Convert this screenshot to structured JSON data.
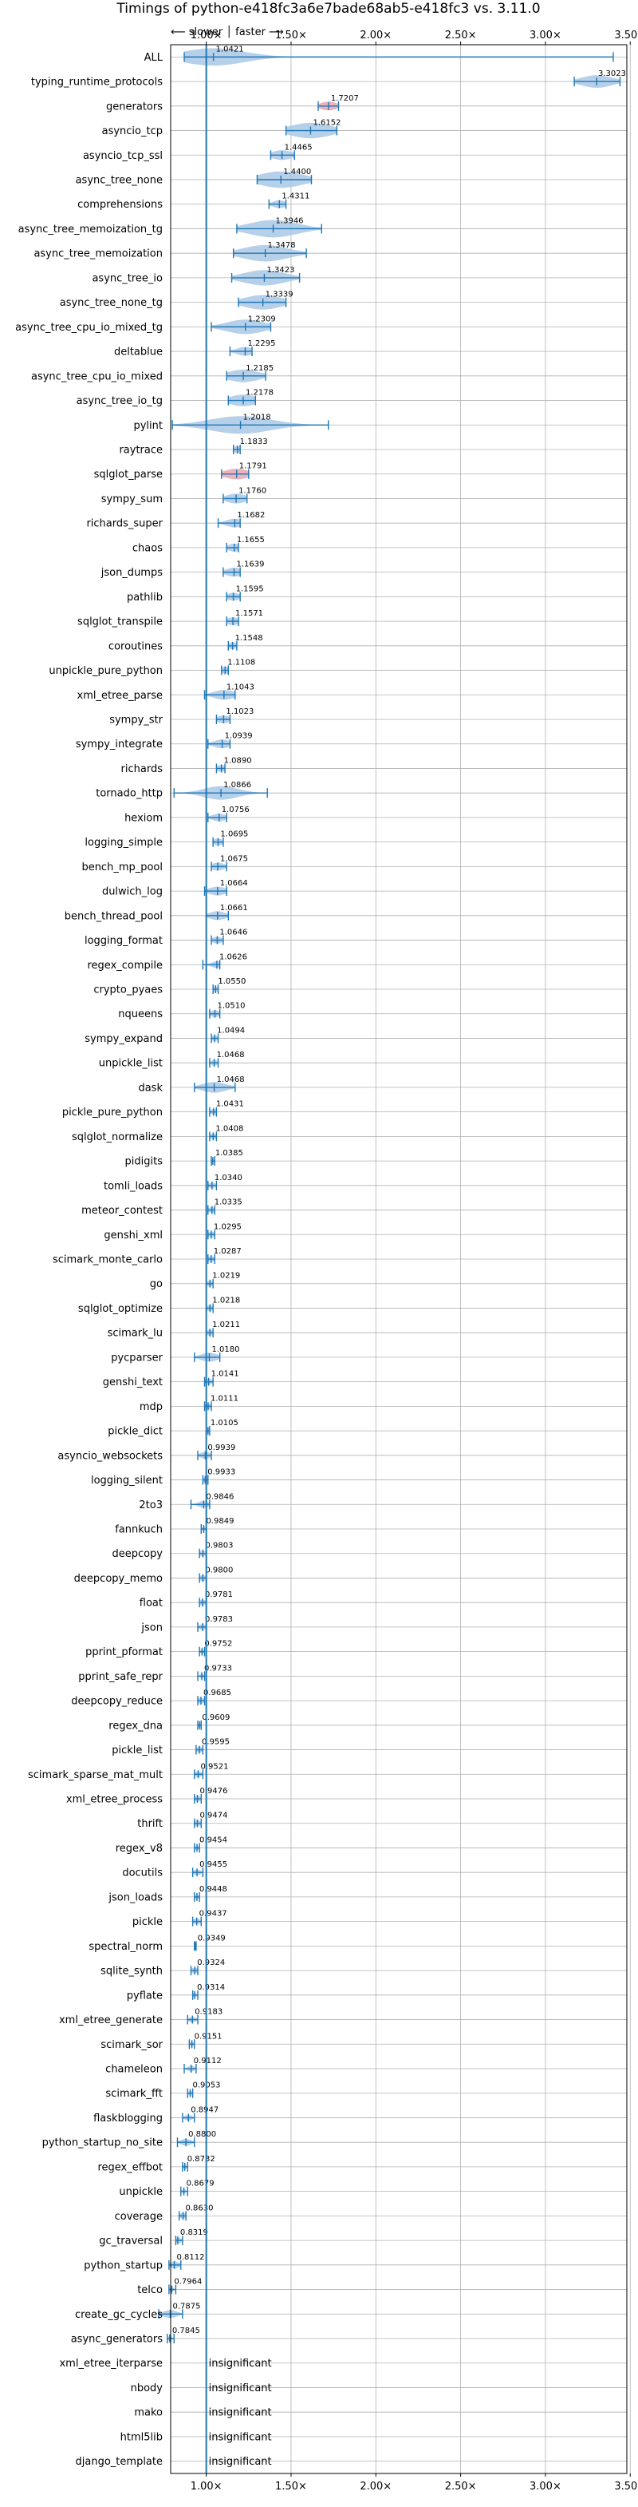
{
  "chart_data": {
    "type": "violin",
    "title": "Timings of python-e418fc3a6e7bade68ab5-e418fc3 vs. 3.11.0",
    "direction_legend": "⟵ slower │ faster ⟶",
    "xlim": [
      0.79,
      3.48
    ],
    "grid": true,
    "baseline": 1.0,
    "x_ticks": [
      {
        "value": 1.0,
        "label": "1.00×"
      },
      {
        "value": 1.5,
        "label": "1.50×"
      },
      {
        "value": 2.0,
        "label": "2.00×"
      },
      {
        "value": 2.5,
        "label": "2.50×"
      },
      {
        "value": 3.0,
        "label": "3.00×"
      },
      {
        "value": 3.5,
        "label": "3.50×"
      }
    ],
    "colors": {
      "violin": "#a9c8e6",
      "line": "#1f77b4",
      "baseline": "#1f77b4",
      "highlight": "#e7a3b0",
      "grid": "#b0b0b0"
    },
    "insignificant_text": "insignificant",
    "benchmarks": [
      {
        "name": "ALL",
        "value": 1.0421,
        "label": "1.0421",
        "min": 0.87,
        "max": 3.4,
        "spread": 0.18
      },
      {
        "name": "typing_runtime_protocols",
        "value": 3.3023,
        "label": "3.3023",
        "min": 3.17,
        "max": 3.44,
        "spread": 0.09
      },
      {
        "name": "generators",
        "value": 1.7207,
        "label": "1.7207",
        "min": 1.66,
        "max": 1.78,
        "spread": 0.05,
        "highlight": true
      },
      {
        "name": "asyncio_tcp",
        "value": 1.6152,
        "label": "1.6152",
        "min": 1.47,
        "max": 1.77,
        "spread": 0.12
      },
      {
        "name": "asyncio_tcp_ssl",
        "value": 1.4465,
        "label": "1.4465",
        "min": 1.38,
        "max": 1.52,
        "spread": 0.06
      },
      {
        "name": "async_tree_none",
        "value": 1.44,
        "label": "1.4400",
        "min": 1.3,
        "max": 1.62,
        "spread": 0.13
      },
      {
        "name": "comprehensions",
        "value": 1.4311,
        "label": "1.4311",
        "min": 1.37,
        "max": 1.47,
        "spread": 0.04
      },
      {
        "name": "async_tree_memoization_tg",
        "value": 1.3946,
        "label": "1.3946",
        "min": 1.18,
        "max": 1.68,
        "spread": 0.14
      },
      {
        "name": "async_tree_memoization",
        "value": 1.3478,
        "label": "1.3478",
        "min": 1.16,
        "max": 1.59,
        "spread": 0.13
      },
      {
        "name": "async_tree_io",
        "value": 1.3423,
        "label": "1.3423",
        "min": 1.15,
        "max": 1.55,
        "spread": 0.12
      },
      {
        "name": "async_tree_none_tg",
        "value": 1.3339,
        "label": "1.3339",
        "min": 1.19,
        "max": 1.47,
        "spread": 0.11
      },
      {
        "name": "async_tree_cpu_io_mixed_tg",
        "value": 1.2309,
        "label": "1.2309",
        "min": 1.03,
        "max": 1.38,
        "spread": 0.11
      },
      {
        "name": "deltablue",
        "value": 1.2295,
        "label": "1.2295",
        "min": 1.14,
        "max": 1.27,
        "spread": 0.05
      },
      {
        "name": "async_tree_cpu_io_mixed",
        "value": 1.2185,
        "label": "1.2185",
        "min": 1.12,
        "max": 1.35,
        "spread": 0.09
      },
      {
        "name": "async_tree_io_tg",
        "value": 1.2178,
        "label": "1.2178",
        "min": 1.13,
        "max": 1.29,
        "spread": 0.08
      },
      {
        "name": "pylint",
        "value": 1.2018,
        "label": "1.2018",
        "min": 0.8,
        "max": 1.72,
        "spread": 0.18
      },
      {
        "name": "raytrace",
        "value": 1.1833,
        "label": "1.1833",
        "min": 1.16,
        "max": 1.2,
        "spread": 0.03
      },
      {
        "name": "sqlglot_parse",
        "value": 1.1791,
        "label": "1.1791",
        "min": 1.09,
        "max": 1.25,
        "spread": 0.07,
        "highlight": true
      },
      {
        "name": "sympy_sum",
        "value": 1.176,
        "label": "1.1760",
        "min": 1.1,
        "max": 1.24,
        "spread": 0.06
      },
      {
        "name": "richards_super",
        "value": 1.1682,
        "label": "1.1682",
        "min": 1.07,
        "max": 1.2,
        "spread": 0.05
      },
      {
        "name": "chaos",
        "value": 1.1655,
        "label": "1.1655",
        "min": 1.12,
        "max": 1.19,
        "spread": 0.04
      },
      {
        "name": "json_dumps",
        "value": 1.1639,
        "label": "1.1639",
        "min": 1.1,
        "max": 1.2,
        "spread": 0.05
      },
      {
        "name": "pathlib",
        "value": 1.1595,
        "label": "1.1595",
        "min": 1.12,
        "max": 1.2,
        "spread": 0.04
      },
      {
        "name": "sqlglot_transpile",
        "value": 1.1571,
        "label": "1.1571",
        "min": 1.12,
        "max": 1.19,
        "spread": 0.04
      },
      {
        "name": "coroutines",
        "value": 1.1548,
        "label": "1.1548",
        "min": 1.13,
        "max": 1.18,
        "spread": 0.03
      },
      {
        "name": "unpickle_pure_python",
        "value": 1.1108,
        "label": "1.1108",
        "min": 1.09,
        "max": 1.13,
        "spread": 0.03
      },
      {
        "name": "xml_etree_parse",
        "value": 1.1043,
        "label": "1.1043",
        "min": 0.99,
        "max": 1.17,
        "spread": 0.06
      },
      {
        "name": "sympy_str",
        "value": 1.1023,
        "label": "1.1023",
        "min": 1.06,
        "max": 1.14,
        "spread": 0.04
      },
      {
        "name": "sympy_integrate",
        "value": 1.0939,
        "label": "1.0939",
        "min": 1.01,
        "max": 1.14,
        "spread": 0.05
      },
      {
        "name": "richards",
        "value": 1.089,
        "label": "1.0890",
        "min": 1.06,
        "max": 1.11,
        "spread": 0.03
      },
      {
        "name": "tornado_http",
        "value": 1.0866,
        "label": "1.0866",
        "min": 0.81,
        "max": 1.36,
        "spread": 0.1
      },
      {
        "name": "hexiom",
        "value": 1.0756,
        "label": "1.0756",
        "min": 1.01,
        "max": 1.12,
        "spread": 0.04
      },
      {
        "name": "logging_simple",
        "value": 1.0695,
        "label": "1.0695",
        "min": 1.04,
        "max": 1.1,
        "spread": 0.03
      },
      {
        "name": "bench_mp_pool",
        "value": 1.0675,
        "label": "1.0675",
        "min": 1.03,
        "max": 1.12,
        "spread": 0.04
      },
      {
        "name": "dulwich_log",
        "value": 1.0664,
        "label": "1.0664",
        "min": 0.99,
        "max": 1.12,
        "spread": 0.05
      },
      {
        "name": "bench_thread_pool",
        "value": 1.0661,
        "label": "1.0661",
        "min": 1.0,
        "max": 1.13,
        "spread": 0.05
      },
      {
        "name": "logging_format",
        "value": 1.0646,
        "label": "1.0646",
        "min": 1.03,
        "max": 1.1,
        "spread": 0.03
      },
      {
        "name": "regex_compile",
        "value": 1.0626,
        "label": "1.0626",
        "min": 0.98,
        "max": 1.08,
        "spread": 0.03
      },
      {
        "name": "crypto_pyaes",
        "value": 1.055,
        "label": "1.0550",
        "min": 1.04,
        "max": 1.07,
        "spread": 0.02
      },
      {
        "name": "nqueens",
        "value": 1.051,
        "label": "1.0510",
        "min": 1.02,
        "max": 1.08,
        "spread": 0.03
      },
      {
        "name": "sympy_expand",
        "value": 1.0494,
        "label": "1.0494",
        "min": 1.03,
        "max": 1.07,
        "spread": 0.02
      },
      {
        "name": "unpickle_list",
        "value": 1.0468,
        "label": "1.0468",
        "min": 1.02,
        "max": 1.07,
        "spread": 0.02
      },
      {
        "name": "dask",
        "value": 1.0468,
        "label": "1.0468",
        "min": 0.93,
        "max": 1.17,
        "spread": 0.07
      },
      {
        "name": "pickle_pure_python",
        "value": 1.0431,
        "label": "1.0431",
        "min": 1.02,
        "max": 1.06,
        "spread": 0.02
      },
      {
        "name": "sqlglot_normalize",
        "value": 1.0408,
        "label": "1.0408",
        "min": 1.02,
        "max": 1.06,
        "spread": 0.02
      },
      {
        "name": "pidigits",
        "value": 1.0385,
        "label": "1.0385",
        "min": 1.03,
        "max": 1.05,
        "spread": 0.01
      },
      {
        "name": "tomli_loads",
        "value": 1.034,
        "label": "1.0340",
        "min": 1.01,
        "max": 1.06,
        "spread": 0.02
      },
      {
        "name": "meteor_contest",
        "value": 1.0335,
        "label": "1.0335",
        "min": 1.01,
        "max": 1.05,
        "spread": 0.02
      },
      {
        "name": "genshi_xml",
        "value": 1.0295,
        "label": "1.0295",
        "min": 1.01,
        "max": 1.05,
        "spread": 0.02
      },
      {
        "name": "scimark_monte_carlo",
        "value": 1.0287,
        "label": "1.0287",
        "min": 1.01,
        "max": 1.05,
        "spread": 0.02
      },
      {
        "name": "go",
        "value": 1.0219,
        "label": "1.0219",
        "min": 1.0,
        "max": 1.04,
        "spread": 0.02
      },
      {
        "name": "sqlglot_optimize",
        "value": 1.0218,
        "label": "1.0218",
        "min": 1.0,
        "max": 1.04,
        "spread": 0.02
      },
      {
        "name": "scimark_lu",
        "value": 1.0211,
        "label": "1.0211",
        "min": 1.0,
        "max": 1.04,
        "spread": 0.02
      },
      {
        "name": "pycparser",
        "value": 1.018,
        "label": "1.0180",
        "min": 0.93,
        "max": 1.08,
        "spread": 0.05
      },
      {
        "name": "genshi_text",
        "value": 1.0141,
        "label": "1.0141",
        "min": 0.99,
        "max": 1.04,
        "spread": 0.02
      },
      {
        "name": "mdp",
        "value": 1.0111,
        "label": "1.0111",
        "min": 0.99,
        "max": 1.03,
        "spread": 0.02
      },
      {
        "name": "pickle_dict",
        "value": 1.0105,
        "label": "1.0105",
        "min": 1.0,
        "max": 1.02,
        "spread": 0.01
      },
      {
        "name": "asyncio_websockets",
        "value": 0.9939,
        "label": "0.9939",
        "min": 0.95,
        "max": 1.03,
        "spread": 0.03
      },
      {
        "name": "logging_silent",
        "value": 0.9933,
        "label": "0.9933",
        "min": 0.98,
        "max": 1.01,
        "spread": 0.01
      },
      {
        "name": "2to3",
        "value": 0.9846,
        "label": "0.9846",
        "min": 0.91,
        "max": 1.02,
        "spread": 0.03
      },
      {
        "name": "fannkuch",
        "value": 0.9849,
        "label": "0.9849",
        "min": 0.97,
        "max": 1.0,
        "spread": 0.01
      },
      {
        "name": "deepcopy",
        "value": 0.9803,
        "label": "0.9803",
        "min": 0.96,
        "max": 1.0,
        "spread": 0.02
      },
      {
        "name": "deepcopy_memo",
        "value": 0.98,
        "label": "0.9800",
        "min": 0.96,
        "max": 1.0,
        "spread": 0.02
      },
      {
        "name": "float",
        "value": 0.9781,
        "label": "0.9781",
        "min": 0.96,
        "max": 1.0,
        "spread": 0.02
      },
      {
        "name": "json",
        "value": 0.9783,
        "label": "0.9783",
        "min": 0.95,
        "max": 1.0,
        "spread": 0.02
      },
      {
        "name": "pprint_pformat",
        "value": 0.9752,
        "label": "0.9752",
        "min": 0.96,
        "max": 0.99,
        "spread": 0.01
      },
      {
        "name": "pprint_safe_repr",
        "value": 0.9733,
        "label": "0.9733",
        "min": 0.95,
        "max": 0.99,
        "spread": 0.01
      },
      {
        "name": "deepcopy_reduce",
        "value": 0.9685,
        "label": "0.9685",
        "min": 0.95,
        "max": 0.99,
        "spread": 0.02
      },
      {
        "name": "regex_dna",
        "value": 0.9609,
        "label": "0.9609",
        "min": 0.95,
        "max": 0.97,
        "spread": 0.01
      },
      {
        "name": "pickle_list",
        "value": 0.9595,
        "label": "0.9595",
        "min": 0.94,
        "max": 0.98,
        "spread": 0.02
      },
      {
        "name": "scimark_sparse_mat_mult",
        "value": 0.9521,
        "label": "0.9521",
        "min": 0.93,
        "max": 0.98,
        "spread": 0.02
      },
      {
        "name": "xml_etree_process",
        "value": 0.9476,
        "label": "0.9476",
        "min": 0.93,
        "max": 0.97,
        "spread": 0.02
      },
      {
        "name": "thrift",
        "value": 0.9474,
        "label": "0.9474",
        "min": 0.93,
        "max": 0.97,
        "spread": 0.02
      },
      {
        "name": "regex_v8",
        "value": 0.9454,
        "label": "0.9454",
        "min": 0.93,
        "max": 0.96,
        "spread": 0.01
      },
      {
        "name": "docutils",
        "value": 0.9455,
        "label": "0.9455",
        "min": 0.92,
        "max": 0.98,
        "spread": 0.02
      },
      {
        "name": "json_loads",
        "value": 0.9448,
        "label": "0.9448",
        "min": 0.93,
        "max": 0.96,
        "spread": 0.01
      },
      {
        "name": "pickle",
        "value": 0.9437,
        "label": "0.9437",
        "min": 0.92,
        "max": 0.97,
        "spread": 0.02
      },
      {
        "name": "spectral_norm",
        "value": 0.9349,
        "label": "0.9349",
        "min": 0.93,
        "max": 0.94,
        "spread": 0.01
      },
      {
        "name": "sqlite_synth",
        "value": 0.9324,
        "label": "0.9324",
        "min": 0.91,
        "max": 0.95,
        "spread": 0.02
      },
      {
        "name": "pyflate",
        "value": 0.9314,
        "label": "0.9314",
        "min": 0.92,
        "max": 0.95,
        "spread": 0.01
      },
      {
        "name": "xml_etree_generate",
        "value": 0.9183,
        "label": "0.9183",
        "min": 0.89,
        "max": 0.95,
        "spread": 0.02
      },
      {
        "name": "scimark_sor",
        "value": 0.9151,
        "label": "0.9151",
        "min": 0.9,
        "max": 0.93,
        "spread": 0.01
      },
      {
        "name": "chameleon",
        "value": 0.9112,
        "label": "0.9112",
        "min": 0.87,
        "max": 0.94,
        "spread": 0.02
      },
      {
        "name": "scimark_fft",
        "value": 0.9053,
        "label": "0.9053",
        "min": 0.89,
        "max": 0.92,
        "spread": 0.01
      },
      {
        "name": "flaskblogging",
        "value": 0.8947,
        "label": "0.8947",
        "min": 0.86,
        "max": 0.93,
        "spread": 0.02
      },
      {
        "name": "python_startup_no_site",
        "value": 0.88,
        "label": "0.8800",
        "min": 0.83,
        "max": 0.93,
        "spread": 0.03
      },
      {
        "name": "regex_effbot",
        "value": 0.8732,
        "label": "0.8732",
        "min": 0.86,
        "max": 0.89,
        "spread": 0.01
      },
      {
        "name": "unpickle",
        "value": 0.8679,
        "label": "0.8679",
        "min": 0.85,
        "max": 0.89,
        "spread": 0.01
      },
      {
        "name": "coverage",
        "value": 0.863,
        "label": "0.8630",
        "min": 0.84,
        "max": 0.88,
        "spread": 0.02
      },
      {
        "name": "gc_traversal",
        "value": 0.8319,
        "label": "0.8319",
        "min": 0.82,
        "max": 0.86,
        "spread": 0.02
      },
      {
        "name": "python_startup",
        "value": 0.8112,
        "label": "0.8112",
        "min": 0.78,
        "max": 0.85,
        "spread": 0.03
      },
      {
        "name": "telco",
        "value": 0.7964,
        "label": "0.7964",
        "min": 0.78,
        "max": 0.82,
        "spread": 0.01
      },
      {
        "name": "create_gc_cycles",
        "value": 0.7875,
        "label": "0.7875",
        "min": 0.72,
        "max": 0.86,
        "spread": 0.04
      },
      {
        "name": "async_generators",
        "value": 0.7845,
        "label": "0.7845",
        "min": 0.77,
        "max": 0.81,
        "spread": 0.01
      },
      {
        "name": "xml_etree_iterparse",
        "insignificant": true
      },
      {
        "name": "nbody",
        "insignificant": true
      },
      {
        "name": "mako",
        "insignificant": true
      },
      {
        "name": "html5lib",
        "insignificant": true
      },
      {
        "name": "django_template",
        "insignificant": true
      }
    ]
  }
}
